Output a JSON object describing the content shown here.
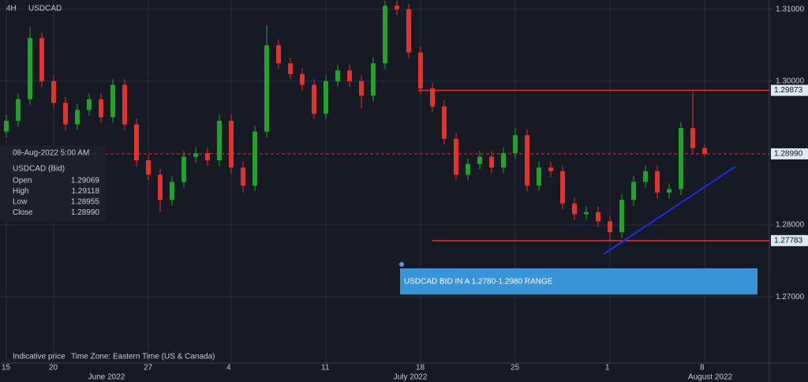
{
  "chart_data": {
    "type": "candlestick",
    "timeframe": "4H",
    "title": "USDCAD",
    "categories": [
      "15",
      null,
      null,
      null,
      "20",
      null,
      null,
      null,
      null,
      null,
      null,
      null,
      "27",
      null,
      null,
      null,
      null,
      null,
      null,
      "4",
      null,
      null,
      null,
      null,
      null,
      null,
      null,
      "11",
      null,
      null,
      null,
      null,
      null,
      null,
      null,
      "18",
      null,
      null,
      null,
      null,
      null,
      null,
      null,
      "25",
      null,
      null,
      null,
      null,
      null,
      null,
      null,
      "1",
      null,
      null,
      null,
      null,
      null,
      null,
      null,
      "8"
    ],
    "month_labels": [
      "June 2022",
      "July 2022",
      "August 2022"
    ],
    "open": [
      1.293,
      1.2945,
      1.2975,
      1.306,
      1.3,
      1.297,
      1.294,
      1.296,
      1.2975,
      1.295,
      1.2995,
      1.294,
      1.289,
      1.287,
      1.2835,
      1.286,
      1.2895,
      1.29,
      1.289,
      1.2945,
      1.288,
      1.2855,
      1.293,
      1.305,
      1.3025,
      1.301,
      1.2995,
      1.2955,
      1.3,
      1.3015,
      1.3,
      1.298,
      1.3025,
      1.3105,
      1.31,
      1.304,
      1.299,
      1.2965,
      1.292,
      1.287,
      1.2885,
      1.2895,
      1.288,
      1.29,
      1.2925,
      1.2855,
      1.288,
      1.2875,
      1.283,
      1.2815,
      1.2818,
      1.2805,
      1.279,
      1.2835,
      1.286,
      1.2875,
      1.2845,
      1.285,
      1.2935,
      1.29069
    ],
    "high": [
      1.2953,
      1.2983,
      1.3075,
      1.3068,
      1.3008,
      1.2978,
      1.2968,
      1.2983,
      1.2983,
      1.3003,
      1.3003,
      1.2948,
      1.2898,
      1.2878,
      1.2868,
      1.2903,
      1.2908,
      1.2908,
      1.2953,
      1.2953,
      1.2888,
      1.2938,
      1.3078,
      1.3058,
      1.3033,
      1.3018,
      1.3003,
      1.3008,
      1.3023,
      1.3023,
      1.3008,
      1.3033,
      1.3112,
      1.3112,
      1.3108,
      1.3048,
      1.2998,
      1.2973,
      1.2928,
      1.2893,
      1.2903,
      1.2903,
      1.2908,
      1.2935,
      1.2933,
      1.2888,
      1.2888,
      1.2883,
      1.2838,
      1.2826,
      1.2826,
      1.2813,
      1.2843,
      1.2868,
      1.2883,
      1.2883,
      1.2858,
      1.2943,
      1.2985,
      1.29118
    ],
    "low": [
      1.2922,
      1.2937,
      1.2967,
      1.2992,
      1.2962,
      1.2932,
      1.2932,
      1.2952,
      1.2942,
      1.2942,
      1.2932,
      1.2882,
      1.2862,
      1.2818,
      1.2827,
      1.2852,
      1.2887,
      1.2882,
      1.2882,
      1.2872,
      1.2845,
      1.2847,
      1.2922,
      1.3017,
      1.3002,
      1.2987,
      1.2947,
      1.2947,
      1.2992,
      1.2992,
      1.2962,
      1.2972,
      1.3017,
      1.3092,
      1.3032,
      1.2982,
      1.2957,
      1.2912,
      1.2862,
      1.2862,
      1.2877,
      1.2872,
      1.2872,
      1.2892,
      1.2847,
      1.2847,
      1.2867,
      1.2822,
      1.2807,
      1.2807,
      1.2797,
      1.2778,
      1.2782,
      1.2827,
      1.2852,
      1.2837,
      1.2837,
      1.2842,
      1.2899,
      1.28955
    ],
    "close": [
      1.2945,
      1.2975,
      1.306,
      1.3,
      1.297,
      1.294,
      1.296,
      1.2975,
      1.295,
      1.2995,
      1.294,
      1.289,
      1.287,
      1.2835,
      1.286,
      1.2895,
      1.29,
      1.289,
      1.2945,
      1.288,
      1.2855,
      1.293,
      1.305,
      1.3025,
      1.301,
      1.2995,
      1.2955,
      1.3,
      1.3015,
      1.3,
      1.298,
      1.3025,
      1.3105,
      1.31,
      1.304,
      1.299,
      1.2965,
      1.292,
      1.287,
      1.2885,
      1.2895,
      1.288,
      1.29,
      1.2925,
      1.2855,
      1.288,
      1.2875,
      1.283,
      1.2815,
      1.2818,
      1.2805,
      1.279,
      1.2835,
      1.286,
      1.2875,
      1.2845,
      1.285,
      1.2935,
      1.2907,
      1.2899
    ],
    "up_color": "#22a32a",
    "down_color": "#e2332f",
    "ylim": [
      1.2608,
      1.3113
    ],
    "yticks": [
      {
        "value": 1.31,
        "label": "1.31000"
      },
      {
        "value": 1.3,
        "label": "1.30000"
      },
      {
        "value": 1.28,
        "label": "1.28000"
      },
      {
        "value": 1.27,
        "label": "1.27000"
      }
    ],
    "grid": true,
    "levels": [
      1.29873,
      1.27783
    ],
    "level_color": "#e2332f",
    "current_price": {
      "value": 1.2899,
      "label": "1.28990"
    },
    "crosshair_time": "08-Aug-2022 5:00 AM",
    "info": {
      "title": "USDCAD (Bid)",
      "rows": [
        [
          "Open",
          "1.29069"
        ],
        [
          "High",
          "1.29118"
        ],
        [
          "Low",
          "1.28955"
        ],
        [
          "Close",
          "1.28990"
        ]
      ]
    },
    "annotation": "USDCAD BID IN A 1.2780-1.2980 RANGE",
    "footer": [
      "Indicative price",
      "Time Zone: Eastern Time (US & Canada)"
    ]
  }
}
